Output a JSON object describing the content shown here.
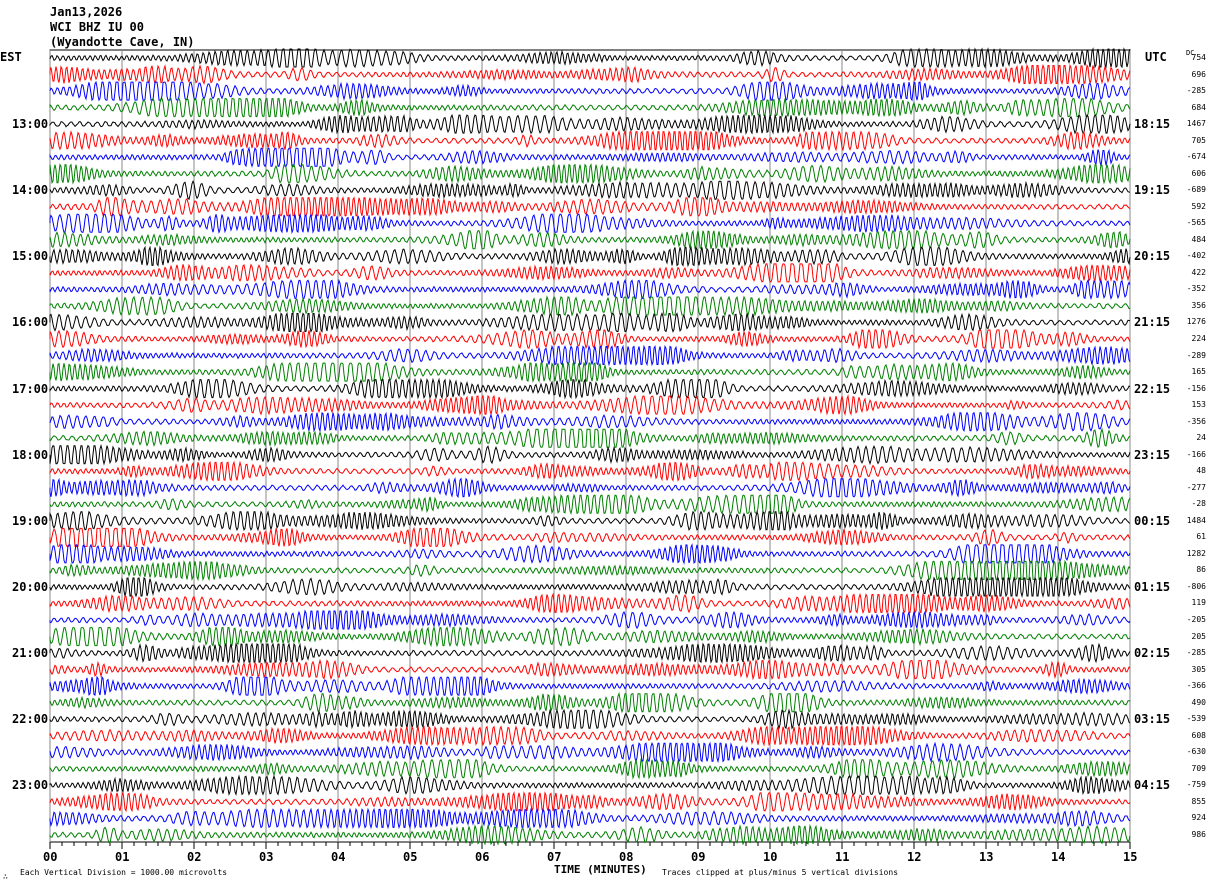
{
  "header": {
    "date": "Jan13,2026",
    "station": "WCI BHZ IU 00",
    "location": "(Wyandotte Cave, IN)"
  },
  "left_timezone": "EST",
  "right_timezone": "UTC",
  "dc_label": "DC",
  "footer": {
    "logo": "∴",
    "scale_note": "Each Vertical Division = 1000.00 microvolts",
    "xlabel": "TIME (MINUTES)",
    "clip_note": "Traces clipped at plus/minus 5 vertical divisions"
  },
  "chart_data": {
    "type": "line",
    "subtype": "helicorder",
    "xlabel": "TIME (MINUTES)",
    "xlim": [
      0,
      15
    ],
    "x_ticks": [
      "00",
      "01",
      "02",
      "03",
      "04",
      "05",
      "06",
      "07",
      "08",
      "09",
      "10",
      "11",
      "12",
      "13",
      "14",
      "15"
    ],
    "minutes_per_trace": 15,
    "trace_count": 48,
    "trace_colors": [
      "#000000",
      "#ff0000",
      "#0000ff",
      "#008000"
    ],
    "grid": true,
    "left_hour_labels": [
      "13:00",
      "14:00",
      "15:00",
      "16:00",
      "17:00",
      "18:00",
      "19:00",
      "20:00",
      "21:00",
      "22:00",
      "23:00"
    ],
    "right_hour_labels": [
      "18:15",
      "19:15",
      "20:15",
      "21:15",
      "22:15",
      "23:15",
      "00:15",
      "01:15",
      "02:15",
      "03:15",
      "04:15"
    ],
    "dc_offsets": [
      754,
      696,
      -285,
      684,
      1467,
      705,
      -674,
      606,
      -689,
      592,
      -565,
      484,
      -402,
      422,
      -352,
      356,
      1276,
      224,
      -289,
      165,
      -156,
      153,
      -356,
      24,
      -166,
      48,
      -277,
      -28,
      1484,
      61,
      1282,
      86,
      -806,
      119,
      -205,
      205,
      -285,
      305,
      -366,
      490,
      -539,
      608,
      -630,
      709,
      -759,
      855,
      924,
      986
    ]
  }
}
